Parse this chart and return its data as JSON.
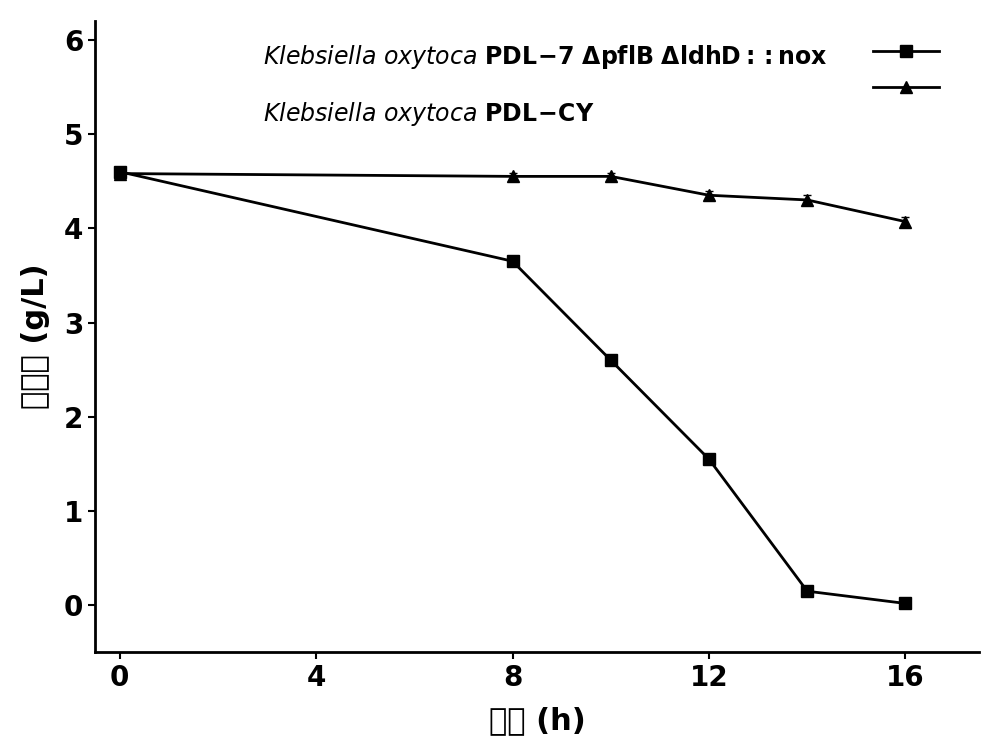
{
  "series1_x": [
    0,
    8,
    10,
    12,
    14,
    16
  ],
  "series1_y": [
    4.6,
    3.65,
    2.6,
    1.55,
    0.15,
    0.02
  ],
  "series1_yerr": [
    0.05,
    0.05,
    0.05,
    0.05,
    0.05,
    0.03
  ],
  "series2_x": [
    0,
    8,
    10,
    12,
    14,
    16
  ],
  "series2_y": [
    4.58,
    4.55,
    4.55,
    4.35,
    4.3,
    4.07
  ],
  "series2_yerr": [
    0.05,
    0.04,
    0.04,
    0.05,
    0.05,
    0.05
  ],
  "xlabel_chinese": "时间",
  "xlabel_unit": " (h)",
  "ylabel_chinese": "丙酮酸",
  "ylabel_unit": " (g/L)",
  "xlim": [
    -0.5,
    17.5
  ],
  "ylim": [
    -0.5,
    6.2
  ],
  "xticks": [
    0,
    4,
    8,
    12,
    16
  ],
  "yticks": [
    0,
    1,
    2,
    3,
    4,
    5,
    6
  ],
  "line_color": "#000000",
  "background_color": "#ffffff",
  "marker_size": 9,
  "line_width": 2.0
}
